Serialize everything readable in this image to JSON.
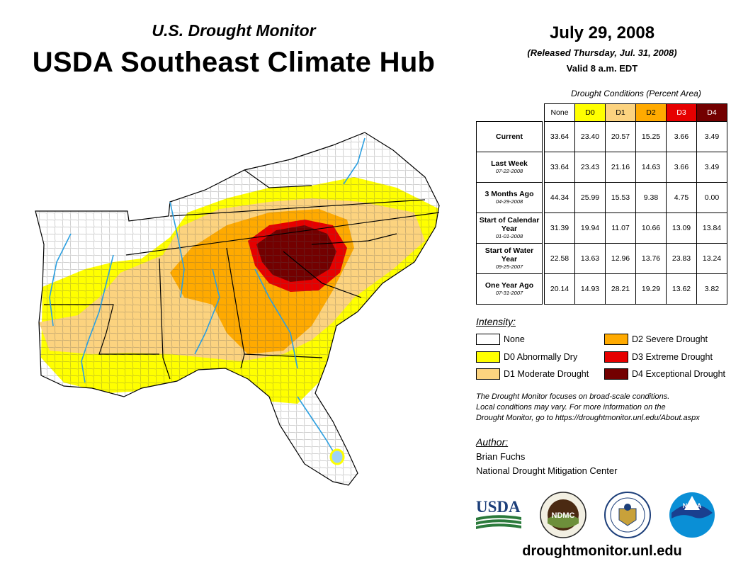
{
  "header": {
    "subtitle": "U.S. Drought Monitor",
    "title": "USDA Southeast Climate Hub",
    "date": "July 29, 2008",
    "released": "(Released Thursday, Jul. 31, 2008)",
    "valid": "Valid 8 a.m. EDT"
  },
  "conditions": {
    "title": "Drought Conditions (Percent Area)",
    "columns": [
      "None",
      "D0",
      "D1",
      "D2",
      "D3",
      "D4"
    ],
    "rows": [
      {
        "label": "Current",
        "date": "",
        "values": [
          "33.64",
          "23.40",
          "20.57",
          "15.25",
          "3.66",
          "3.49"
        ]
      },
      {
        "label": "Last Week",
        "date": "07-22-2008",
        "values": [
          "33.64",
          "23.43",
          "21.16",
          "14.63",
          "3.66",
          "3.49"
        ]
      },
      {
        "label": "3 Months Ago",
        "date": "04-29-2008",
        "values": [
          "44.34",
          "25.99",
          "15.53",
          "9.38",
          "4.75",
          "0.00"
        ]
      },
      {
        "label": "Start of Calendar Year",
        "date": "01-01-2008",
        "values": [
          "31.39",
          "19.94",
          "11.07",
          "10.66",
          "13.09",
          "13.84"
        ]
      },
      {
        "label": "Start of Water Year",
        "date": "09-25-2007",
        "values": [
          "22.58",
          "13.63",
          "12.96",
          "13.76",
          "23.83",
          "13.24"
        ]
      },
      {
        "label": "One Year Ago",
        "date": "07-31-2007",
        "values": [
          "20.14",
          "14.93",
          "28.21",
          "19.29",
          "13.62",
          "3.82"
        ]
      }
    ]
  },
  "legend": {
    "title": "Intensity:",
    "items": [
      {
        "label": "None",
        "color": "#ffffff"
      },
      {
        "label": "D0 Abnormally Dry",
        "color": "#ffff00"
      },
      {
        "label": "D1 Moderate Drought",
        "color": "#fcd37f"
      },
      {
        "label": "D2 Severe Drought",
        "color": "#ffaa00"
      },
      {
        "label": "D3 Extreme Drought",
        "color": "#e60000"
      },
      {
        "label": "D4 Exceptional Drought",
        "color": "#730000"
      }
    ]
  },
  "note": {
    "line1": "The Drought Monitor focuses on broad-scale conditions.",
    "line2": "Local conditions may vary. For more information on the",
    "line3": "Drought Monitor, go to https://droughtmonitor.unl.edu/About.aspx"
  },
  "author": {
    "title": "Author:",
    "name": "Brian Fuchs",
    "org": "National Drought Mitigation Center"
  },
  "logos": {
    "usda": "USDA",
    "ndmc": "NDMC",
    "noaa": "NOAA"
  },
  "footer": {
    "url": "droughtmonitor.unl.edu"
  }
}
